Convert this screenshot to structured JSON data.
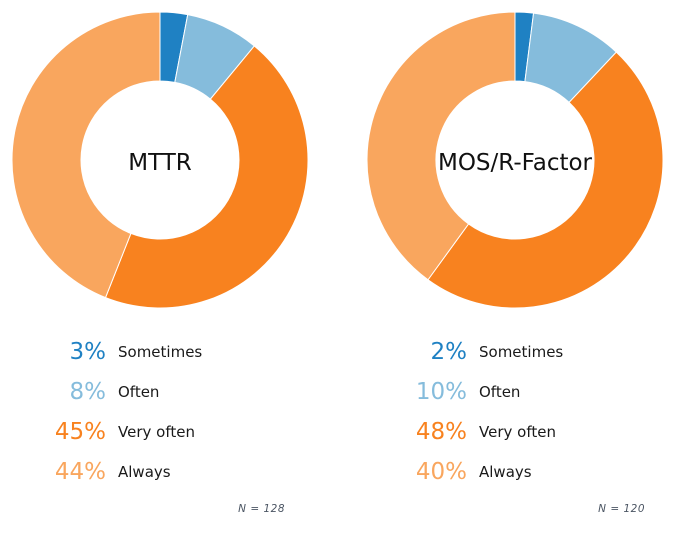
{
  "figure": {
    "background": "#ffffff"
  },
  "text_colors": {
    "title": "#111111",
    "legend_label": "#1a1a1a",
    "annotation": "#4b5563"
  },
  "chart_data": [
    {
      "type": "pie",
      "subtype": "donut",
      "title": "MTTR",
      "categories": [
        "Sometimes",
        "Often",
        "Very often",
        "Always"
      ],
      "values": [
        3,
        8,
        45,
        44
      ],
      "pct_labels": [
        "3%",
        "8%",
        "45%",
        "44%"
      ],
      "colors": [
        "#1f81c3",
        "#85bcdc",
        "#f8821f",
        "#f9a65e"
      ],
      "annotation": "N = 128",
      "start_angle": "12-oclock",
      "direction": "clockwise",
      "legend_position": "below"
    },
    {
      "type": "pie",
      "subtype": "donut",
      "title": "MOS/R-Factor",
      "categories": [
        "Sometimes",
        "Often",
        "Very often",
        "Always"
      ],
      "values": [
        2,
        10,
        48,
        40
      ],
      "pct_labels": [
        "2%",
        "10%",
        "48%",
        "40%"
      ],
      "colors": [
        "#1f81c3",
        "#85bcdc",
        "#f8821f",
        "#f9a65e"
      ],
      "annotation": "N = 120",
      "start_angle": "12-oclock",
      "direction": "clockwise",
      "legend_position": "below"
    }
  ]
}
